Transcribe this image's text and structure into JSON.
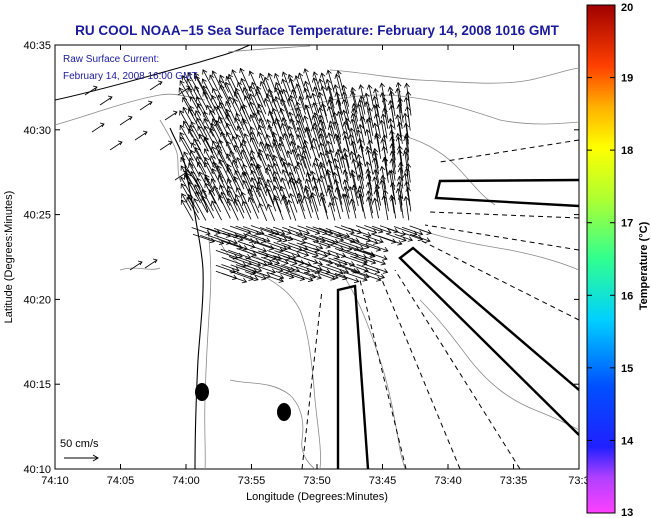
{
  "chart_data": {
    "type": "map",
    "title": "RU COOL  NOAA−15  Sea Surface Temperature:  February 14, 2008 1016 GMT",
    "xlabel": "Longitude (Degrees:Minutes)",
    "ylabel": "Latitude (Degrees:Minutes)",
    "xlim": [
      -74.1667,
      -73.5
    ],
    "ylim": [
      40.1667,
      40.5833
    ],
    "x_ticks": [
      "74:10",
      "74:05",
      "74:00",
      "73:55",
      "73:50",
      "73:45",
      "73:40",
      "73:35",
      "73:3"
    ],
    "y_ticks": [
      "40:10",
      "40:15",
      "40:20",
      "40:25",
      "40:30",
      "40:35"
    ],
    "colorbar": {
      "label": "Temperature (°C)",
      "min": 13,
      "max": 20,
      "ticks": [
        "13",
        "14",
        "15",
        "16",
        "17",
        "18",
        "19",
        "20"
      ]
    },
    "annotation_lines": [
      "Raw Surface Current:",
      "February 14, 2008 16:00 GMT"
    ],
    "scale_label": "50 cm/s"
  },
  "colors": {
    "title": "#1a1a9c",
    "annotation": "#1a1a9c",
    "contour": "#8a8a8a",
    "vectors": "#000000"
  }
}
